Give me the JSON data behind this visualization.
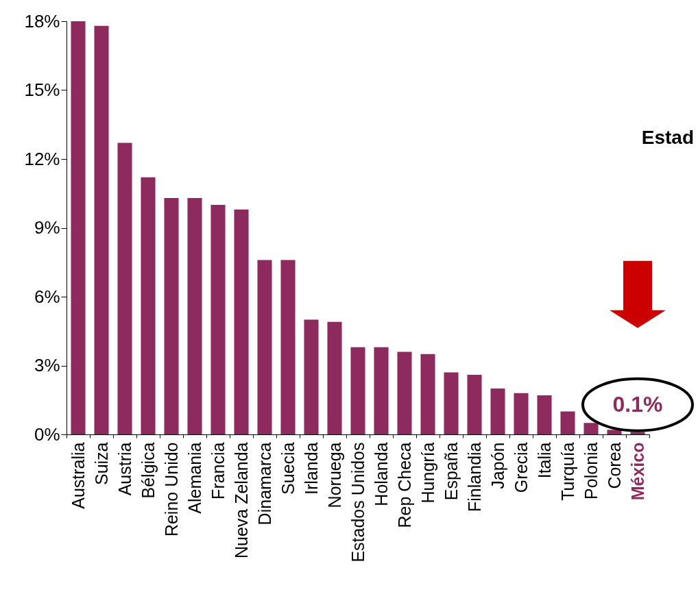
{
  "chart_data": {
    "type": "bar",
    "categories": [
      "Australia",
      "Suiza",
      "Austria",
      "Bélgica",
      "Reino Unido",
      "Alemania",
      "Francia",
      "Nueva Zelanda",
      "Dinamarca",
      "Suecia",
      "Irlanda",
      "Noruega",
      "Estados Unidos",
      "Holanda",
      "Rep Checa",
      "Hungría",
      "España",
      "Finlandia",
      "Japón",
      "Grecia",
      "Italia",
      "Turquía",
      "Polonia",
      "Corea",
      "México"
    ],
    "values": [
      18.0,
      17.8,
      12.7,
      11.2,
      10.3,
      10.3,
      10.0,
      9.8,
      7.6,
      7.6,
      5.0,
      4.9,
      3.8,
      3.8,
      3.6,
      3.5,
      2.7,
      2.6,
      2.0,
      1.8,
      1.7,
      1.0,
      0.5,
      0.2,
      0.1
    ],
    "color": "#8e2b5e",
    "ylim": [
      0,
      18
    ],
    "yticks": [
      {
        "value": 0,
        "label": "0%"
      },
      {
        "value": 3,
        "label": "3%"
      },
      {
        "value": 6,
        "label": "6%"
      },
      {
        "value": 9,
        "label": "9%"
      },
      {
        "value": 12,
        "label": "12%"
      },
      {
        "value": 15,
        "label": "15%"
      },
      {
        "value": 18,
        "label": "18%"
      }
    ],
    "grid": false,
    "annotations": [
      {
        "text": "0.1%",
        "x": "México",
        "y": 0.1
      },
      "Estad"
    ]
  }
}
